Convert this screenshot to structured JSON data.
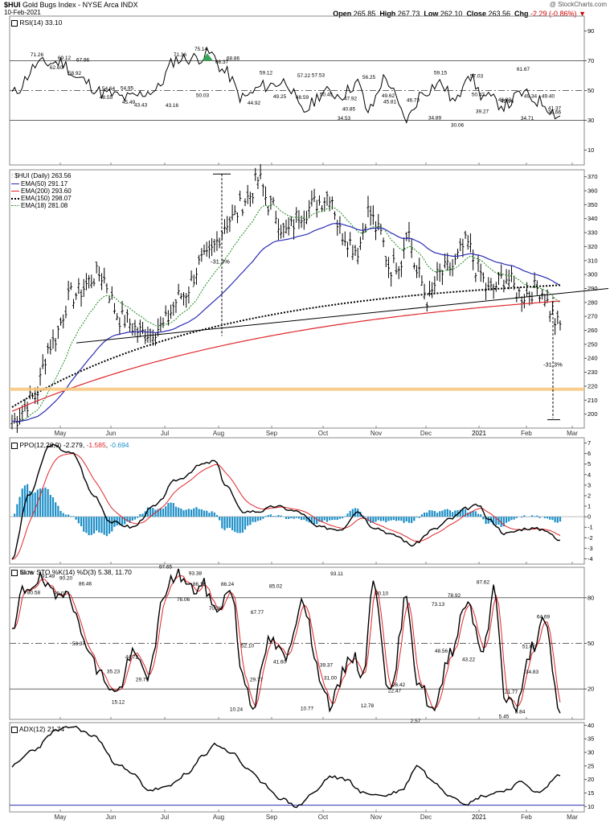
{
  "header": {
    "symbol": "$HUI",
    "name": "Gold Bugs Index - NYSE Arca  INDX",
    "date": "10-Feb-2021",
    "watermark": "@ StockCharts.com",
    "open_label": "Open",
    "open": "265.85",
    "high_label": "High",
    "high": "267.73",
    "low_label": "Low",
    "low": "262.10",
    "close_label": "Close",
    "close": "263.56",
    "chg_label": "Chg",
    "chg": "-2.29 (-0.86%)"
  },
  "months": [
    "May",
    "Jun",
    "Jul",
    "Aug",
    "Sep",
    "Oct",
    "Nov",
    "Dec",
    "2021",
    "Feb",
    "Mar"
  ],
  "colors": {
    "up": "#000000",
    "ema50": "#2b2bb5",
    "ema200": "#e0262a",
    "ema150": "#000000",
    "ema18": "#1c8c1c",
    "hist": "#1d8fc7",
    "rsi_fill": "#3aa35a",
    "support": "#f7c47a",
    "stoch_d": "#e0262a",
    "adx_base": "#2b2bb5"
  },
  "chart_data": [
    {
      "type": "line",
      "title": "RSI(14) 33.10",
      "ylim": [
        0,
        100
      ],
      "y_ticks": [
        10,
        30,
        50,
        70,
        90
      ],
      "reference_lines": [
        30,
        50,
        70
      ],
      "annotations": [
        "71.26",
        "69.12",
        "67.96",
        "62.60",
        "58.92",
        "54.64",
        "54.95",
        "48.55",
        "45.49",
        "43.43",
        "43.16",
        "71.36",
        "50.03",
        "75.14",
        "66.37",
        "68.86",
        "44.92",
        "59.12",
        "49.25",
        "57.22",
        "48.59",
        "57.53",
        "50.45",
        "34.53",
        "47.92",
        "40.85",
        "56.25",
        "49.62",
        "45.81",
        "46.73",
        "34.89",
        "59.15",
        "30.06",
        "50.43",
        "57.03",
        "39.27",
        "45.96",
        "61.67",
        "49.34",
        "38.66",
        "46.93",
        "34.71",
        "49.40",
        "41.37"
      ]
    },
    {
      "type": "candlestick",
      "title": "$HUI (Daily) 263.56",
      "ylim": [
        190,
        375
      ],
      "y_ticks": [
        200,
        210,
        220,
        230,
        240,
        250,
        260,
        270,
        280,
        290,
        300,
        310,
        320,
        330,
        340,
        350,
        360,
        370
      ],
      "legend": [
        "$HUI (Daily) 263.56",
        "EMA(50) 291.17",
        "EMA(200) 293.60",
        "EMA(150) 298.07",
        "EMA(18) 281.08"
      ],
      "annotations": [
        "-31.3%",
        "-31.3%"
      ],
      "support_band": [
        217,
        219
      ]
    },
    {
      "type": "line",
      "title": "PPO(12,26,9) -2.279, -1.585, -0.694",
      "ylim": [
        -4.5,
        7.5
      ],
      "y_ticks": [
        -4,
        -3,
        -2,
        -1,
        0,
        1,
        2,
        3,
        4,
        5,
        6,
        7
      ],
      "series_values": {
        "ppo": "-2.279",
        "signal": "-1.585",
        "hist": "-0.694"
      }
    },
    {
      "type": "line",
      "title": "Slow STO %K(14) %D(3) 5.38, 11.70",
      "ylim": [
        0,
        100
      ],
      "y_ticks": [
        20,
        50,
        80
      ],
      "reference_lines": [
        20,
        50,
        80
      ],
      "annotations": [
        "93.78",
        "91.49",
        "90.20",
        "80.58",
        "80.07",
        "86.46",
        "53.37",
        "35.23",
        "44.72",
        "15.12",
        "29.79",
        "97.65",
        "93.38",
        "76.06",
        "86.18",
        "86.24",
        "70.28",
        "52.10",
        "67.77",
        "85.02",
        "29.77",
        "41.60",
        "10.24",
        "10.77",
        "39.37",
        "31.00",
        "93.11",
        "12.78",
        "80.10",
        "26.42",
        "22.47",
        "2.57",
        "73.13",
        "78.92",
        "48.56",
        "43.22",
        "87.62",
        "5.45",
        "21.77",
        "8.84",
        "51.62",
        "64.69",
        "34.83"
      ]
    },
    {
      "type": "line",
      "title": "ADX(12) 21.74",
      "ylim": [
        8,
        41
      ],
      "y_ticks": [
        10,
        15,
        20,
        25,
        30,
        35,
        40
      ]
    }
  ]
}
